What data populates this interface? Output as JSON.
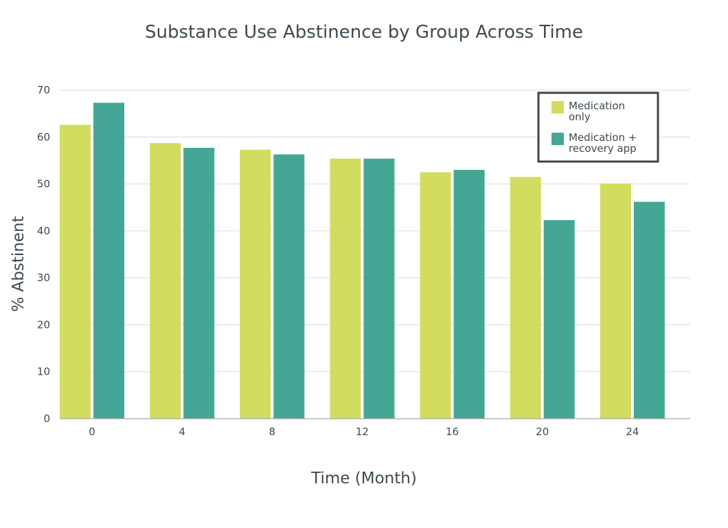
{
  "chart_data": {
    "type": "bar",
    "title": "Substance Use Abstinence by Group Across Time",
    "xlabel": "Time (Month)",
    "ylabel": "% Abstinent",
    "categories": [
      "0",
      "4",
      "8",
      "12",
      "16",
      "20",
      "24"
    ],
    "series": [
      {
        "name": "Medication only",
        "legend_lines": [
          "Medication",
          "only"
        ],
        "color": "#d2dc5e",
        "values": [
          62.6,
          58.7,
          57.3,
          55.4,
          52.5,
          51.5,
          50.1
        ]
      },
      {
        "name": "Medication + recovery app",
        "legend_lines": [
          "Medication +",
          "recovery app"
        ],
        "color": "#44a796",
        "values": [
          67.3,
          57.7,
          56.3,
          55.4,
          53.0,
          42.3,
          46.2
        ]
      }
    ],
    "ylim": [
      0,
      70
    ],
    "yticks": [
      0,
      10,
      20,
      30,
      40,
      50,
      60,
      70
    ],
    "grid": true,
    "legend_position": "top-right"
  }
}
